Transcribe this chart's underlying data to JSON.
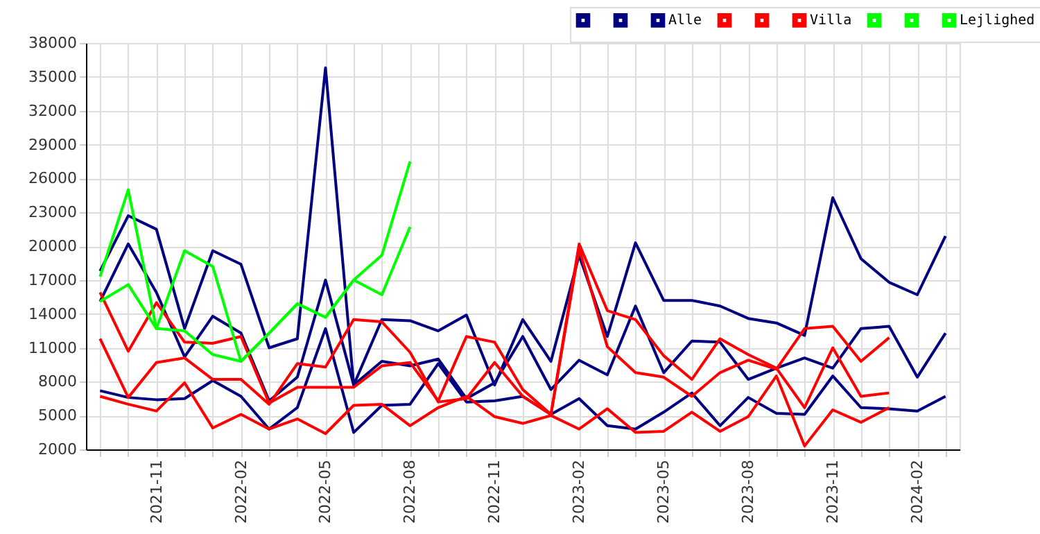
{
  "chart_data": {
    "type": "line",
    "categories": [
      null,
      null,
      "2021-11",
      null,
      null,
      "2022-02",
      null,
      null,
      "2022-05",
      null,
      null,
      "2022-08",
      null,
      null,
      "2022-11",
      null,
      null,
      "2023-02",
      null,
      null,
      "2023-05",
      null,
      null,
      "2023-08",
      null,
      null,
      "2023-11",
      null,
      null,
      "2024-02",
      null
    ],
    "ylim": [
      2000,
      38000
    ],
    "yticks": [
      2000,
      5000,
      8000,
      11000,
      14000,
      17000,
      20000,
      23000,
      26000,
      29000,
      32000,
      35000,
      38000
    ],
    "grid": true,
    "legend": "top right",
    "marker": "none",
    "line_style": "solid",
    "series": [
      {
        "color": "#000080",
        "values": [
          17800,
          22700,
          21500,
          12700,
          19600,
          18400,
          11000,
          11800,
          35800,
          7700,
          13500,
          13400,
          12500,
          13900,
          7700,
          13500,
          9800,
          19200,
          12000,
          20300,
          15200,
          15200,
          14700,
          13600,
          13200,
          12100,
          24300,
          18900,
          16800,
          15700,
          20900
        ]
      },
      {
        "color": "#000080",
        "values": [
          15100,
          20200,
          15900,
          10200,
          13800,
          12300,
          6300,
          8400,
          17000,
          7700,
          9800,
          9400,
          10000,
          6500,
          7900,
          12000,
          7300,
          9900,
          8600,
          14700,
          8800,
          11600,
          11500,
          8200,
          9200,
          10100,
          9200,
          12700,
          12900,
          8400,
          12300
        ]
      },
      {
        "name": "Alle",
        "color": "#000080",
        "values": [
          7200,
          6600,
          6400,
          6500,
          8100,
          6700,
          3800,
          5700,
          12700,
          3500,
          5900,
          6000,
          9600,
          6200,
          6300,
          6700,
          5100,
          6500,
          4100,
          3800,
          5300,
          7000,
          4100,
          6600,
          5200,
          5100,
          8500,
          5700,
          5600,
          5400,
          6700
        ]
      },
      {
        "color": "#ff0000",
        "values": [
          15900,
          10700,
          15000,
          11500,
          11400,
          12000,
          6100,
          7500,
          7500,
          7500,
          9400,
          9700,
          6300,
          12000,
          11500,
          7300,
          5100,
          19800,
          11100,
          8800,
          8400,
          6700,
          8800,
          9900,
          9100,
          12700,
          12900,
          9800,
          11900,
          null,
          null
        ]
      },
      {
        "color": "#ff0000",
        "values": [
          11800,
          6600,
          9700,
          10100,
          8200,
          8200,
          6000,
          9600,
          9300,
          13500,
          13300,
          10600,
          6200,
          6500,
          9700,
          6700,
          5100,
          20200,
          14300,
          13500,
          10300,
          8200,
          11800,
          10400,
          9200,
          5700,
          11000,
          6700,
          7000,
          null,
          null
        ]
      },
      {
        "name": "Villa",
        "color": "#ff0000",
        "values": [
          6700,
          6000,
          5400,
          7900,
          3900,
          5100,
          3800,
          4700,
          3400,
          5900,
          6000,
          4100,
          5700,
          6700,
          4900,
          4300,
          5000,
          3800,
          5600,
          3500,
          3600,
          5300,
          3600,
          4900,
          8500,
          2300,
          5500,
          4400,
          5700,
          null,
          null
        ]
      },
      {
        "color": "#00ff00",
        "values": [
          17300,
          25000,
          12700,
          19600,
          18200,
          9800,
          12300,
          14900,
          13700,
          17000,
          19200,
          27500,
          null,
          null,
          null,
          null,
          null,
          null,
          null,
          null,
          null,
          null,
          null,
          null,
          null,
          null,
          null,
          null,
          null,
          null,
          null
        ]
      },
      {
        "color": "#00ff00",
        "values": [
          15100,
          16600,
          12700,
          12500,
          10400,
          9800,
          12300,
          14900,
          13700,
          17000,
          15700,
          21700,
          null,
          null,
          null,
          null,
          null,
          null,
          null,
          null,
          null,
          null,
          null,
          null,
          null,
          null,
          null,
          null,
          null,
          null,
          null
        ]
      },
      {
        "name": "Lejlighed",
        "color": "#00ff00",
        "values": [
          null,
          null,
          null,
          null,
          null,
          null,
          null,
          null,
          null,
          null,
          null,
          null,
          null,
          null,
          null,
          null,
          null,
          null,
          null,
          null,
          null,
          null,
          null,
          null,
          null,
          null,
          null,
          null,
          null,
          null,
          null
        ]
      }
    ]
  }
}
